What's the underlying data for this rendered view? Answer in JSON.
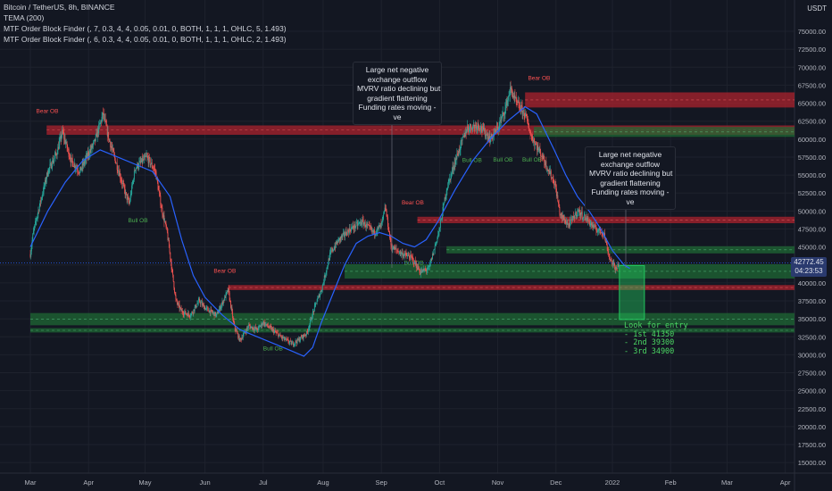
{
  "header": {
    "symbol_line": "Bitcoin / TetherUS, 8h, BINANCE",
    "indicator1": "TEMA (200)",
    "indicator2": "MTF Order Block Finder (, 7, 0.3, 4, 4, 0.05, 0.01, 0, BOTH, 1, 1, 1, OHLC, 5, 1.493)",
    "indicator3": "MTF Order Block Finder (, 6, 0.3, 4, 4, 0.05, 0.01, 0, BOTH, 1, 1, 1, OHLC, 2, 1.493)"
  },
  "currency": "USDT",
  "last_price": {
    "value": "42772.45",
    "countdown": "04:23:53"
  },
  "callout1": [
    "Large net negative",
    "exchange outflow",
    "MVRV ratio declining but",
    "gradient flattening",
    "Funding rates moving -",
    "ve"
  ],
  "callout2": [
    "Large net negative",
    "exchange outflow",
    "MVRV ratio declining but",
    "gradient flattening",
    "Funding rates moving -",
    "ve"
  ],
  "entry_note": [
    "Look for entry",
    "- 1st 41350",
    "- 2nd 39300",
    "- 3rd 34900"
  ],
  "chart_data": {
    "type": "candlestick",
    "title": "Bitcoin / TetherUS, 8h, BINANCE",
    "ylim": [
      14000,
      78000
    ],
    "y_ticks": [
      15000,
      17500,
      20000,
      22500,
      25000,
      27500,
      30000,
      32500,
      35000,
      37500,
      40000,
      42500,
      45000,
      47500,
      50000,
      52500,
      55000,
      57500,
      60000,
      62500,
      65000,
      67500,
      70000,
      72500,
      75000
    ],
    "y_tick_labels": [
      "15000.00",
      "17500.00",
      "20000.00",
      "22500.00",
      "25000.00",
      "27500.00",
      "30000.00",
      "32500.00",
      "35000.00",
      "37500.00",
      "40000.00",
      "42500.00",
      "45000.00",
      "47500.00",
      "50000.00",
      "52500.00",
      "55000.00",
      "57500.00",
      "60000.00",
      "62500.00",
      "65000.00",
      "67500.00",
      "70000.00",
      "72500.00",
      "75000.00"
    ],
    "x_ticks": [
      {
        "label": "Mar",
        "pos": 0.0
      },
      {
        "label": "Apr",
        "pos": 1.0
      },
      {
        "label": "May",
        "pos": 1.97
      },
      {
        "label": "Jun",
        "pos": 3.0
      },
      {
        "label": "Jul",
        "pos": 4.0
      },
      {
        "label": "Aug",
        "pos": 5.03
      },
      {
        "label": "Sep",
        "pos": 6.03
      },
      {
        "label": "Oct",
        "pos": 7.03
      },
      {
        "label": "Nov",
        "pos": 8.03
      },
      {
        "label": "Dec",
        "pos": 9.03
      },
      {
        "label": "2022",
        "pos": 10.0
      },
      {
        "label": "Feb",
        "pos": 11.0
      },
      {
        "label": "Mar",
        "pos": 11.97
      },
      {
        "label": "Apr",
        "pos": 12.97
      }
    ],
    "price_path": [
      [
        0.0,
        44000
      ],
      [
        0.05,
        47000
      ],
      [
        0.15,
        50500
      ],
      [
        0.3,
        55500
      ],
      [
        0.45,
        58000
      ],
      [
        0.55,
        61000
      ],
      [
        0.7,
        57000
      ],
      [
        0.85,
        55500
      ],
      [
        1.0,
        58000
      ],
      [
        1.1,
        59500
      ],
      [
        1.25,
        63500
      ],
      [
        1.35,
        60000
      ],
      [
        1.5,
        56000
      ],
      [
        1.65,
        52000
      ],
      [
        1.7,
        51000
      ],
      [
        1.8,
        56000
      ],
      [
        2.0,
        57500
      ],
      [
        2.15,
        55500
      ],
      [
        2.25,
        50500
      ],
      [
        2.35,
        47000
      ],
      [
        2.5,
        37500
      ],
      [
        2.6,
        36000
      ],
      [
        2.75,
        35500
      ],
      [
        2.9,
        37500
      ],
      [
        3.0,
        36500
      ],
      [
        3.2,
        35500
      ],
      [
        3.4,
        39000
      ],
      [
        3.5,
        34000
      ],
      [
        3.6,
        32000
      ],
      [
        3.75,
        34000
      ],
      [
        3.9,
        33500
      ],
      [
        4.0,
        34500
      ],
      [
        4.15,
        33500
      ],
      [
        4.3,
        32500
      ],
      [
        4.5,
        31500
      ],
      [
        4.6,
        32000
      ],
      [
        4.75,
        33000
      ],
      [
        4.9,
        37000
      ],
      [
        5.0,
        39000
      ],
      [
        5.15,
        44000
      ],
      [
        5.3,
        46000
      ],
      [
        5.5,
        47500
      ],
      [
        5.7,
        48500
      ],
      [
        5.9,
        47000
      ],
      [
        6.03,
        48000
      ],
      [
        6.1,
        50500
      ],
      [
        6.2,
        45000
      ],
      [
        6.4,
        44000
      ],
      [
        6.55,
        43500
      ],
      [
        6.7,
        41500
      ],
      [
        6.85,
        42000
      ],
      [
        7.03,
        47500
      ],
      [
        7.15,
        53000
      ],
      [
        7.3,
        57000
      ],
      [
        7.5,
        61500
      ],
      [
        7.7,
        62000
      ],
      [
        7.9,
        60000
      ],
      [
        8.03,
        61500
      ],
      [
        8.15,
        64000
      ],
      [
        8.25,
        67000
      ],
      [
        8.35,
        65000
      ],
      [
        8.5,
        63500
      ],
      [
        8.6,
        60500
      ],
      [
        8.8,
        57500
      ],
      [
        9.0,
        54000
      ],
      [
        9.03,
        53000
      ],
      [
        9.1,
        49500
      ],
      [
        9.25,
        48000
      ],
      [
        9.4,
        50000
      ],
      [
        9.55,
        49000
      ],
      [
        9.7,
        47500
      ],
      [
        9.85,
        47000
      ],
      [
        9.95,
        43500
      ],
      [
        10.05,
        42000
      ],
      [
        10.12,
        42772
      ]
    ],
    "tema_200": [
      [
        0.0,
        45000
      ],
      [
        0.3,
        50000
      ],
      [
        0.6,
        54000
      ],
      [
        0.9,
        57000
      ],
      [
        1.2,
        58500
      ],
      [
        1.5,
        57500
      ],
      [
        1.8,
        56500
      ],
      [
        2.1,
        55500
      ],
      [
        2.4,
        52000
      ],
      [
        2.6,
        46000
      ],
      [
        2.8,
        41000
      ],
      [
        3.0,
        38000
      ],
      [
        3.3,
        35500
      ],
      [
        3.6,
        33500
      ],
      [
        3.9,
        32500
      ],
      [
        4.2,
        31500
      ],
      [
        4.5,
        30500
      ],
      [
        4.7,
        29800
      ],
      [
        4.85,
        31000
      ],
      [
        5.0,
        34500
      ],
      [
        5.2,
        38500
      ],
      [
        5.4,
        42500
      ],
      [
        5.6,
        45500
      ],
      [
        5.8,
        46500
      ],
      [
        6.0,
        47000
      ],
      [
        6.2,
        46500
      ],
      [
        6.4,
        45500
      ],
      [
        6.6,
        45000
      ],
      [
        6.8,
        46000
      ],
      [
        7.0,
        48500
      ],
      [
        7.3,
        53000
      ],
      [
        7.6,
        57000
      ],
      [
        7.9,
        60000
      ],
      [
        8.2,
        62500
      ],
      [
        8.5,
        64500
      ],
      [
        8.7,
        63500
      ],
      [
        9.0,
        58500
      ],
      [
        9.2,
        55000
      ],
      [
        9.4,
        52000
      ],
      [
        9.6,
        50000
      ],
      [
        9.8,
        47500
      ],
      [
        10.0,
        44500
      ],
      [
        10.2,
        42500
      ],
      [
        10.3,
        42000
      ]
    ],
    "order_blocks": [
      {
        "type": "bear",
        "label": "Bear OB",
        "x0": 0.28,
        "y_low": 60600,
        "y_high": 61900,
        "label_x": 0.1
      },
      {
        "type": "bear",
        "label": "Bear OB",
        "x0": 8.5,
        "y_low": 64400,
        "y_high": 66500,
        "label_x": 8.55
      },
      {
        "type": "bear",
        "label": "Bear OB",
        "x0": 6.65,
        "y_low": 48300,
        "y_high": 49200,
        "label_x": 6.38
      },
      {
        "type": "bear",
        "label": "Bear OB",
        "x0": 3.4,
        "y_low": 39000,
        "y_high": 39700,
        "label_x": 3.15
      },
      {
        "type": "bull",
        "label": "Bull OB",
        "x0": 8.65,
        "y_low": 60300,
        "y_high": 61700,
        "label_x": null
      },
      {
        "type": "bull",
        "label": "Bull OB",
        "x0": 7.15,
        "y_low": 44100,
        "y_high": 45100,
        "label_x": null
      },
      {
        "type": "bull",
        "label": "Bull OB",
        "x0": 5.4,
        "y_low": 40600,
        "y_high": 42600,
        "label_x": null
      },
      {
        "type": "bull",
        "label": "Bull OB",
        "x0": 0.0,
        "y_low": 34100,
        "y_high": 35800,
        "label_x": null
      },
      {
        "type": "bull",
        "label": "Bull OB",
        "x0": 0.0,
        "y_low": 33100,
        "y_high": 33700,
        "label_x": null
      }
    ],
    "bull_ob_labels": [
      {
        "label": "Bull OB",
        "x": 1.68,
        "y": 48400
      },
      {
        "label": "Bull OB",
        "x": 6.42,
        "y": 42500
      },
      {
        "label": "Bull OB",
        "x": 4.0,
        "y": 30600
      },
      {
        "label": "Bull OB",
        "x": 7.42,
        "y": 56800
      },
      {
        "label": "Bull OB",
        "x": 7.95,
        "y": 56900
      },
      {
        "label": "Bull OB",
        "x": 8.45,
        "y": 56900
      },
      {
        "label": "Bull OB",
        "x": 9.58,
        "y": 53500
      }
    ],
    "entry_zone": {
      "x0": 10.12,
      "x1": 10.55,
      "y_low": 34900,
      "y_high": 42400
    },
    "current_price": 42772.45,
    "colors": {
      "bear": "#b2232e",
      "bull": "#1f6b35",
      "tema": "#2962ff",
      "up": "#26a69a",
      "down": "#ef5350",
      "entry": "#22c55e"
    }
  }
}
